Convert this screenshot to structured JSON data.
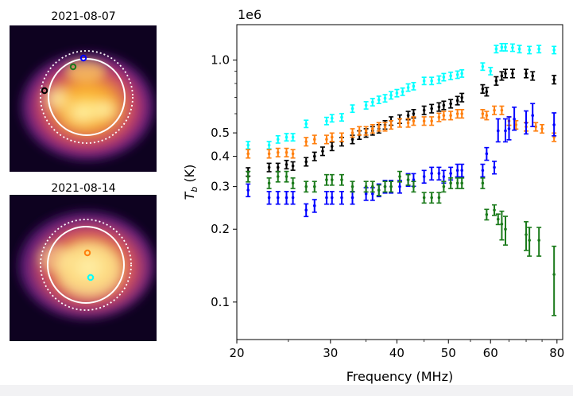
{
  "panels": [
    {
      "date_label": "2021-08-07",
      "markers": [
        {
          "name": "black",
          "color": "#000000"
        },
        {
          "name": "green",
          "color": "#1a7a1a"
        },
        {
          "name": "blue",
          "color": "#0000ff"
        }
      ]
    },
    {
      "date_label": "2021-08-14",
      "markers": [
        {
          "name": "orange",
          "color": "#ff7f0e"
        },
        {
          "name": "cyan",
          "color": "#00ffff"
        }
      ]
    }
  ],
  "chart_data": {
    "type": "scatter",
    "xscale": "log",
    "yscale": "log",
    "xlabel": "Frequency (MHz)",
    "ylabel_main": "T",
    "ylabel_sub": "b",
    "ylabel_unit": " (K)",
    "offset_text": "1e6",
    "xlim": [
      20,
      82
    ],
    "ylim": [
      0.07,
      1.4
    ],
    "xticks": [
      20,
      30,
      40,
      50,
      60,
      80
    ],
    "xtick_labels": [
      "20",
      "30",
      "40",
      "50",
      "60",
      "80"
    ],
    "yticks": [
      0.1,
      0.2,
      0.3,
      0.4,
      0.5,
      1.0
    ],
    "ytick_labels": [
      "0.1",
      "0.2",
      "0.3",
      "0.4",
      "0.5",
      "1.0"
    ],
    "series": [
      {
        "name": "cyan",
        "color": "#00ffff",
        "err": 0.035,
        "points": [
          [
            21.0,
            0.445
          ],
          [
            23.0,
            0.445
          ],
          [
            23.9,
            0.47
          ],
          [
            24.8,
            0.48
          ],
          [
            25.5,
            0.48
          ],
          [
            27.0,
            0.545
          ],
          [
            29.5,
            0.56
          ],
          [
            30.2,
            0.575
          ],
          [
            31.5,
            0.58
          ],
          [
            33.0,
            0.63
          ],
          [
            35.0,
            0.65
          ],
          [
            36.0,
            0.67
          ],
          [
            37.0,
            0.685
          ],
          [
            38.0,
            0.695
          ],
          [
            39.0,
            0.715
          ],
          [
            40.0,
            0.73
          ],
          [
            41.0,
            0.74
          ],
          [
            42.0,
            0.77
          ],
          [
            43.0,
            0.78
          ],
          [
            45.0,
            0.82
          ],
          [
            46.5,
            0.82
          ],
          [
            48.0,
            0.83
          ],
          [
            49.0,
            0.85
          ],
          [
            50.5,
            0.86
          ],
          [
            52.0,
            0.87
          ],
          [
            53.0,
            0.88
          ],
          [
            58.0,
            0.94
          ],
          [
            60.0,
            0.9
          ],
          [
            61.5,
            1.11
          ],
          [
            63.0,
            1.13
          ],
          [
            64.0,
            1.13
          ],
          [
            66.0,
            1.125
          ],
          [
            68.0,
            1.11
          ],
          [
            71.0,
            1.1
          ],
          [
            74.0,
            1.11
          ],
          [
            79.0,
            1.1
          ]
        ]
      },
      {
        "name": "black",
        "color": "#000000",
        "err": 0.04,
        "points": [
          [
            21.0,
            0.345
          ],
          [
            23.0,
            0.36
          ],
          [
            23.9,
            0.36
          ],
          [
            24.8,
            0.37
          ],
          [
            25.5,
            0.365
          ],
          [
            27.0,
            0.38
          ],
          [
            28.0,
            0.4
          ],
          [
            29.0,
            0.42
          ],
          [
            30.2,
            0.44
          ],
          [
            31.5,
            0.46
          ],
          [
            33.0,
            0.47
          ],
          [
            34.0,
            0.49
          ],
          [
            35.0,
            0.5
          ],
          [
            36.0,
            0.51
          ],
          [
            37.0,
            0.52
          ],
          [
            38.0,
            0.54
          ],
          [
            39.0,
            0.56
          ],
          [
            40.5,
            0.57
          ],
          [
            42.0,
            0.59
          ],
          [
            43.0,
            0.6
          ],
          [
            45.0,
            0.62
          ],
          [
            46.5,
            0.63
          ],
          [
            48.0,
            0.64
          ],
          [
            49.0,
            0.65
          ],
          [
            50.5,
            0.66
          ],
          [
            52.0,
            0.68
          ],
          [
            53.0,
            0.7
          ],
          [
            58.0,
            0.76
          ],
          [
            59.0,
            0.74
          ],
          [
            61.5,
            0.82
          ],
          [
            63.0,
            0.86
          ],
          [
            64.0,
            0.88
          ],
          [
            66.0,
            0.88
          ],
          [
            70.0,
            0.88
          ],
          [
            72.0,
            0.86
          ],
          [
            79.0,
            0.83
          ]
        ]
      },
      {
        "name": "orange",
        "color": "#ff7f0e",
        "err": 0.04,
        "points": [
          [
            21.0,
            0.41
          ],
          [
            23.0,
            0.41
          ],
          [
            23.9,
            0.415
          ],
          [
            24.8,
            0.415
          ],
          [
            25.5,
            0.41
          ],
          [
            27.0,
            0.46
          ],
          [
            28.0,
            0.47
          ],
          [
            29.5,
            0.47
          ],
          [
            30.2,
            0.48
          ],
          [
            31.5,
            0.48
          ],
          [
            33.0,
            0.5
          ],
          [
            34.0,
            0.51
          ],
          [
            35.0,
            0.51
          ],
          [
            36.0,
            0.52
          ],
          [
            37.0,
            0.53
          ],
          [
            38.0,
            0.53
          ],
          [
            39.0,
            0.54
          ],
          [
            40.5,
            0.55
          ],
          [
            42.0,
            0.55
          ],
          [
            43.0,
            0.56
          ],
          [
            45.0,
            0.56
          ],
          [
            46.5,
            0.56
          ],
          [
            48.0,
            0.58
          ],
          [
            49.0,
            0.59
          ],
          [
            50.5,
            0.59
          ],
          [
            52.0,
            0.6
          ],
          [
            53.0,
            0.6
          ],
          [
            58.0,
            0.6
          ],
          [
            59.0,
            0.59
          ],
          [
            61.0,
            0.62
          ],
          [
            63.0,
            0.62
          ],
          [
            65.0,
            0.56
          ],
          [
            67.0,
            0.54
          ],
          [
            70.0,
            0.53
          ],
          [
            73.0,
            0.53
          ],
          [
            75.0,
            0.52
          ],
          [
            79.0,
            0.48
          ]
        ]
      },
      {
        "name": "blue",
        "color": "#0000ff",
        "err": 0.06,
        "points": [
          [
            21.0,
            0.29
          ],
          [
            23.0,
            0.27
          ],
          [
            23.9,
            0.27
          ],
          [
            24.8,
            0.27
          ],
          [
            25.5,
            0.27
          ],
          [
            27.0,
            0.24
          ],
          [
            28.0,
            0.25
          ],
          [
            29.5,
            0.27
          ],
          [
            30.2,
            0.27
          ],
          [
            31.5,
            0.27
          ],
          [
            33.0,
            0.27
          ],
          [
            35.0,
            0.28
          ],
          [
            36.0,
            0.28
          ],
          [
            37.0,
            0.29
          ],
          [
            38.0,
            0.3
          ],
          [
            39.0,
            0.3
          ],
          [
            40.5,
            0.3
          ],
          [
            42.0,
            0.32
          ],
          [
            43.0,
            0.32
          ],
          [
            45.0,
            0.33
          ],
          [
            46.5,
            0.34
          ],
          [
            48.0,
            0.34
          ],
          [
            49.0,
            0.33
          ],
          [
            50.5,
            0.34
          ],
          [
            52.0,
            0.35
          ],
          [
            53.0,
            0.35
          ],
          [
            58.0,
            0.35
          ],
          [
            59.0,
            0.41
          ],
          [
            61.0,
            0.36
          ],
          [
            62.0,
            0.51
          ],
          [
            64.0,
            0.51
          ],
          [
            65.0,
            0.52
          ],
          [
            66.5,
            0.57
          ],
          [
            70.0,
            0.55
          ],
          [
            72.0,
            0.59
          ],
          [
            79.0,
            0.54
          ]
        ]
      },
      {
        "name": "green",
        "color": "#1a7a1a",
        "err": 0.05,
        "points": [
          [
            21.0,
            0.33
          ],
          [
            23.0,
            0.31
          ],
          [
            23.9,
            0.33
          ],
          [
            24.8,
            0.33
          ],
          [
            25.5,
            0.31
          ],
          [
            27.0,
            0.3
          ],
          [
            28.0,
            0.3
          ],
          [
            29.5,
            0.32
          ],
          [
            30.2,
            0.32
          ],
          [
            31.5,
            0.32
          ],
          [
            33.0,
            0.3
          ],
          [
            35.0,
            0.3
          ],
          [
            36.0,
            0.3
          ],
          [
            37.0,
            0.29
          ],
          [
            38.0,
            0.3
          ],
          [
            39.0,
            0.3
          ],
          [
            40.5,
            0.33
          ],
          [
            42.0,
            0.32
          ],
          [
            43.0,
            0.3
          ],
          [
            45.0,
            0.27
          ],
          [
            46.5,
            0.27
          ],
          [
            48.0,
            0.27
          ],
          [
            49.0,
            0.3
          ],
          [
            50.5,
            0.31
          ],
          [
            52.0,
            0.31
          ],
          [
            53.0,
            0.31
          ],
          [
            58.0,
            0.31
          ],
          [
            59.0,
            0.23
          ],
          [
            61.0,
            0.24
          ],
          [
            62.0,
            0.22
          ],
          [
            63.0,
            0.21
          ],
          [
            64.0,
            0.2
          ],
          [
            70.0,
            0.19
          ],
          [
            71.0,
            0.18
          ],
          [
            74.0,
            0.18
          ],
          [
            79.0,
            0.13
          ]
        ]
      }
    ]
  }
}
